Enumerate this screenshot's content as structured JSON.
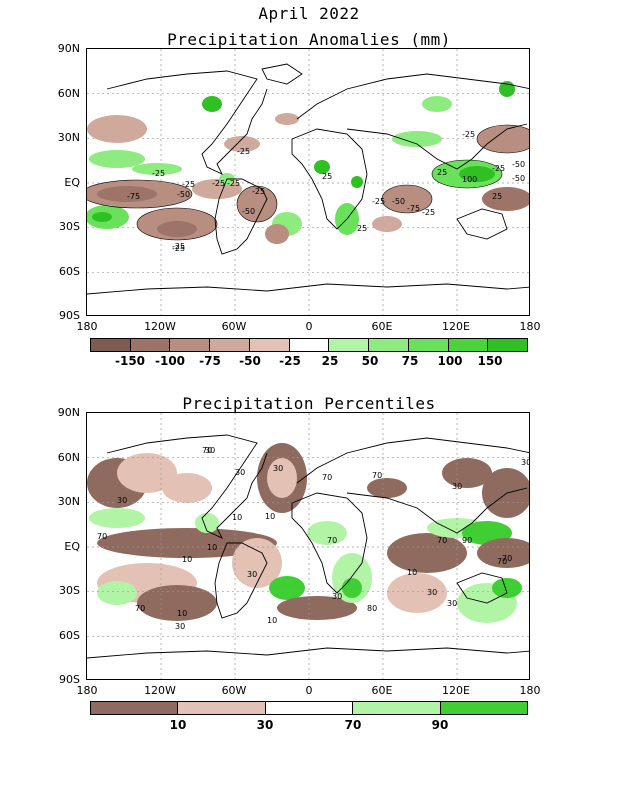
{
  "title": "April 2022",
  "panels": [
    {
      "id": "anomalies",
      "title": "Precipitation Anomalies (mm)",
      "lat_labels": [
        "90N",
        "60N",
        "30N",
        "EQ",
        "30S",
        "60S",
        "90S"
      ],
      "lon_labels": [
        "180",
        "120W",
        "60W",
        "0",
        "60E",
        "120E",
        "180"
      ],
      "legend": {
        "labels": [
          "-150",
          "-100",
          "-75",
          "-50",
          "-25",
          "25",
          "50",
          "75",
          "100",
          "150"
        ],
        "colors": [
          "#7f5a4e",
          "#9e7468",
          "#b88e80",
          "#cfa99c",
          "#e3c1b5",
          "#ffffff",
          "#b2f4a6",
          "#8eeb7f",
          "#6ae15a",
          "#49d43a",
          "#2fc022"
        ]
      },
      "contour_labels": [
        "-25",
        "-25",
        "-50",
        "-75",
        "-25",
        "-25",
        "-25",
        "-25",
        "-50",
        "-25",
        "25",
        "-50",
        "-75",
        "-25",
        "25",
        "-25",
        "-25",
        "-25",
        "-50",
        "-50",
        "100",
        "25",
        "-25",
        "25"
      ]
    },
    {
      "id": "percentiles",
      "title": "Precipitation Percentiles",
      "lat_labels": [
        "90N",
        "60N",
        "30N",
        "EQ",
        "30S",
        "60S",
        "90S"
      ],
      "lon_labels": [
        "180",
        "120W",
        "60W",
        "0",
        "60E",
        "120E",
        "180"
      ],
      "legend": {
        "labels": [
          "10",
          "30",
          "70",
          "90"
        ],
        "colors": [
          "#8f6a5e",
          "#e3c1b5",
          "#ffffff",
          "#b2f4a6",
          "#3fcf35"
        ]
      },
      "contour_labels": [
        "70",
        "30",
        "30",
        "10",
        "30",
        "70",
        "70",
        "10",
        "10",
        "70",
        "30",
        "70",
        "10",
        "10",
        "30",
        "70",
        "70",
        "90",
        "30",
        "30",
        "10",
        "80",
        "30",
        "70",
        "10",
        "30",
        "70",
        "30",
        "30"
      ]
    }
  ]
}
